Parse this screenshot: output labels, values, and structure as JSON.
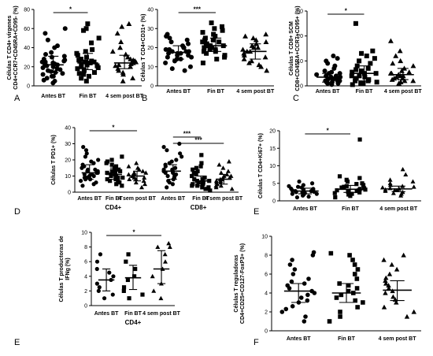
{
  "chart_data": [
    {
      "id": "A",
      "type": "scatter",
      "panel_label": "A",
      "ylabel": "Células T CD4+ vírgenes CD4+CCR7+CD45RA+CD95- (%)",
      "ylim": [
        0,
        80
      ],
      "yticks": [
        0,
        20,
        40,
        60,
        80
      ],
      "categories": [
        "Antes BT",
        "Fin BT",
        "4 sem post BT"
      ],
      "groups": [
        {
          "category": "Antes BT",
          "marker": "circle",
          "mean": 22,
          "sd_low": 14,
          "sd_high": 31,
          "values": [
            3,
            5,
            6,
            8,
            10,
            10,
            12,
            13,
            14,
            15,
            16,
            17,
            18,
            19,
            20,
            21,
            22,
            22,
            23,
            24,
            25,
            25,
            26,
            27,
            28,
            30,
            31,
            33,
            35,
            40,
            42,
            48,
            55,
            60
          ]
        },
        {
          "category": "Fin BT",
          "marker": "square",
          "mean": 24,
          "sd_low": 17,
          "sd_high": 34,
          "values": [
            5,
            8,
            10,
            12,
            13,
            14,
            16,
            17,
            18,
            19,
            20,
            21,
            22,
            23,
            24,
            25,
            25,
            26,
            27,
            28,
            30,
            32,
            34,
            36,
            38,
            45,
            50,
            58,
            60,
            65
          ]
        },
        {
          "category": "4 sem post BT",
          "marker": "triangle",
          "mean": 24,
          "sd_low": 18,
          "sd_high": 32,
          "values": [
            5,
            8,
            12,
            14,
            16,
            18,
            20,
            21,
            22,
            23,
            24,
            25,
            26,
            27,
            28,
            30,
            33,
            36,
            40,
            46,
            55,
            62,
            65
          ]
        }
      ],
      "significance": [
        {
          "from": 0,
          "to": 1,
          "label": "*"
        }
      ]
    },
    {
      "id": "B",
      "type": "scatter",
      "panel_label": "B",
      "ylabel": "Células T CD4+CD31+ (%)",
      "ylim": [
        0,
        40
      ],
      "yticks": [
        0,
        10,
        20,
        30,
        40
      ],
      "categories": [
        "Antes BT",
        "Fin BT",
        "4 sem post BT"
      ],
      "groups": [
        {
          "category": "Antes BT",
          "marker": "circle",
          "mean": 17.5,
          "sd_low": 14,
          "sd_high": 21,
          "values": [
            8,
            9,
            10,
            12,
            13,
            14,
            14,
            15,
            15,
            16,
            16,
            17,
            17,
            17,
            18,
            18,
            18,
            19,
            19,
            20,
            20,
            21,
            22,
            23,
            24,
            25,
            26,
            27
          ]
        },
        {
          "category": "Fin BT",
          "marker": "square",
          "mean": 21,
          "sd_low": 18,
          "sd_high": 25,
          "values": [
            12,
            14,
            15,
            16,
            17,
            18,
            18,
            19,
            19,
            20,
            20,
            21,
            21,
            21,
            22,
            22,
            23,
            23,
            24,
            24,
            25,
            26,
            27,
            28,
            29,
            30,
            31,
            33
          ]
        },
        {
          "category": "4 sem post BT",
          "marker": "triangle",
          "mean": 18,
          "sd_low": 14,
          "sd_high": 22,
          "values": [
            8,
            10,
            11,
            12,
            13,
            14,
            15,
            16,
            17,
            18,
            18,
            19,
            20,
            20,
            21,
            22,
            23,
            24,
            25,
            26,
            27
          ]
        }
      ],
      "significance": [
        {
          "from": 0,
          "to": 1,
          "label": "***"
        }
      ]
    },
    {
      "id": "C",
      "type": "scatter",
      "panel_label": "C",
      "ylabel": "Células T CD8+ SCM CD8+CD45RA+CCR7+CD95+ (%)",
      "ylim": [
        0,
        30
      ],
      "yticks": [
        0,
        10,
        20,
        30
      ],
      "categories": [
        "Antes BT",
        "Fin BT",
        "4 sem post BT"
      ],
      "groups": [
        {
          "category": "Antes BT",
          "marker": "circle",
          "mean": 3.5,
          "sd_low": 1.5,
          "sd_high": 5,
          "values": [
            0.5,
            1,
            1,
            1.5,
            1.5,
            2,
            2,
            2,
            2.5,
            2.5,
            3,
            3,
            3,
            3.5,
            3.5,
            4,
            4,
            4.5,
            5,
            5,
            5.5,
            6,
            7,
            8,
            9,
            10,
            11,
            12
          ]
        },
        {
          "category": "Fin BT",
          "marker": "square",
          "mean": 5,
          "sd_low": 2,
          "sd_high": 8,
          "values": [
            0.5,
            1,
            1,
            1.5,
            2,
            2,
            2.5,
            3,
            3,
            3.5,
            4,
            4,
            5,
            5,
            5.5,
            6,
            6.5,
            7,
            8,
            9,
            10,
            11,
            12,
            13,
            14,
            25
          ]
        },
        {
          "category": "4 sem post BT",
          "marker": "triangle",
          "mean": 4.5,
          "sd_low": 2.5,
          "sd_high": 7,
          "values": [
            1,
            1.5,
            2,
            2,
            2.5,
            3,
            3,
            3.5,
            4,
            4,
            4.5,
            5,
            5,
            5.5,
            6,
            7,
            8,
            9,
            10,
            12,
            14,
            18
          ]
        }
      ],
      "significance": [
        {
          "from": 0,
          "to": 1,
          "label": "*"
        }
      ]
    },
    {
      "id": "D",
      "type": "scatter",
      "panel_label": "D",
      "ylabel": "Células T PD1+ (%)",
      "ylim": [
        0,
        40
      ],
      "yticks": [
        0,
        10,
        20,
        30,
        40
      ],
      "categories": [
        "Antes BT",
        "Fin BT",
        "4 sem post BT",
        "Antes BT",
        "Fin BT",
        "4 sem post BT"
      ],
      "group_labels": [
        {
          "text": "CD4+",
          "span": [
            0,
            2
          ]
        },
        {
          "text": "CD8+",
          "span": [
            3,
            5
          ]
        }
      ],
      "groups": [
        {
          "category": "Antes BT",
          "marker": "circle",
          "mean": 12,
          "sd_low": 8,
          "sd_high": 17,
          "values": [
            4,
            5,
            6,
            7,
            8,
            8,
            9,
            9,
            10,
            10,
            11,
            11,
            12,
            12,
            13,
            13,
            14,
            14,
            15,
            16,
            17,
            18,
            19,
            20,
            22,
            24,
            26,
            28
          ]
        },
        {
          "category": "Fin BT",
          "marker": "square",
          "mean": 11,
          "sd_low": 8,
          "sd_high": 15,
          "values": [
            4,
            5,
            6,
            7,
            7,
            8,
            8,
            9,
            9,
            10,
            10,
            11,
            11,
            12,
            12,
            13,
            13,
            14,
            14,
            15,
            16,
            17,
            18,
            19,
            20,
            22
          ]
        },
        {
          "category": "4 sem post BT",
          "marker": "triangle",
          "mean": 10,
          "sd_low": 7,
          "sd_high": 13,
          "values": [
            3,
            5,
            6,
            7,
            8,
            8,
            9,
            9,
            10,
            10,
            11,
            11,
            12,
            12,
            13,
            14,
            15,
            16,
            18
          ]
        },
        {
          "category": "Antes BT",
          "marker": "circle",
          "mean": 13,
          "sd_low": 8,
          "sd_high": 17,
          "values": [
            3,
            5,
            6,
            7,
            8,
            9,
            10,
            10,
            11,
            12,
            12,
            13,
            13,
            14,
            14,
            15,
            16,
            17,
            18,
            19,
            20,
            22,
            24,
            26,
            28,
            30
          ]
        },
        {
          "category": "Fin BT",
          "marker": "square",
          "mean": 7,
          "sd_low": 4,
          "sd_high": 10,
          "values": [
            1,
            2,
            2,
            3,
            3,
            4,
            4,
            5,
            5,
            6,
            6,
            7,
            7,
            8,
            8,
            9,
            9,
            10,
            11,
            12,
            13,
            14,
            15,
            16,
            18,
            23
          ]
        },
        {
          "category": "4 sem post BT",
          "marker": "triangle",
          "mean": 8,
          "sd_low": 5,
          "sd_high": 11,
          "values": [
            2,
            3,
            4,
            4,
            5,
            5,
            6,
            6,
            7,
            7,
            8,
            8,
            9,
            9,
            10,
            10,
            11,
            12,
            13,
            15,
            17,
            19
          ]
        }
      ],
      "significance": [
        {
          "from": 0,
          "to": 2,
          "label": "*"
        },
        {
          "from": 3,
          "to": 4,
          "label": "***"
        },
        {
          "from": 3,
          "to": 5,
          "label": "***"
        }
      ]
    },
    {
      "id": "E1",
      "type": "scatter",
      "panel_label": "E",
      "ylabel": "Células T CD4+Ki67+ (%)",
      "ylim": [
        0,
        20
      ],
      "yticks": [
        0,
        5,
        10,
        15,
        20
      ],
      "categories": [
        "Antes BT",
        "Fin BT",
        "4 sem post BT"
      ],
      "groups": [
        {
          "category": "Antes BT",
          "marker": "circle",
          "mean": 2.8,
          "sd_low": 2,
          "sd_high": 3.6,
          "values": [
            1,
            1.2,
            1.5,
            1.8,
            2,
            2,
            2.2,
            2.4,
            2.5,
            2.6,
            2.8,
            2.8,
            3,
            3,
            3.2,
            3.4,
            3.5,
            3.8,
            4,
            4.2,
            4.5,
            5,
            5.5
          ]
        },
        {
          "category": "Fin BT",
          "marker": "square",
          "mean": 3.3,
          "sd_low": 2.4,
          "sd_high": 4.4,
          "values": [
            1,
            1.4,
            1.8,
            2,
            2.2,
            2.4,
            2.6,
            2.8,
            3,
            3,
            3.2,
            3.4,
            3.6,
            3.8,
            4,
            4.2,
            4.5,
            4.8,
            5,
            5.5,
            6,
            6.5,
            7,
            17.5
          ]
        },
        {
          "category": "4 sem post BT",
          "marker": "triangle",
          "mean": 3.4,
          "sd_low": 2.6,
          "sd_high": 4.2,
          "values": [
            1.5,
            2,
            2.2,
            2.5,
            2.8,
            3,
            3,
            3.2,
            3.4,
            3.6,
            3.8,
            4,
            4.2,
            4.5,
            5,
            5.5,
            6,
            7.5,
            9
          ]
        }
      ],
      "significance": [
        {
          "from": 0,
          "to": 1,
          "label": "*"
        }
      ]
    },
    {
      "id": "E2",
      "type": "scatter",
      "panel_label": "E",
      "ylabel": "Células T productoras de IFNg (%)",
      "ylim": [
        0,
        10
      ],
      "yticks": [
        0,
        2,
        4,
        6,
        8,
        10
      ],
      "categories": [
        "Antes BT",
        "Fin BT",
        "4 sem post BT"
      ],
      "xlabel": "CD4+",
      "groups": [
        {
          "category": "Antes BT",
          "marker": "circle",
          "mean": 3.5,
          "sd_low": 2,
          "sd_high": 5,
          "values": [
            1,
            1.5,
            2,
            2.5,
            3,
            3.5,
            4,
            4.5,
            5,
            6,
            7
          ]
        },
        {
          "category": "Fin BT",
          "marker": "square",
          "mean": 3.8,
          "sd_low": 2.2,
          "sd_high": 5.5,
          "values": [
            1,
            1.5,
            2,
            2.5,
            3.5,
            4,
            5,
            6,
            7
          ]
        },
        {
          "category": "4 sem post BT",
          "marker": "triangle",
          "mean": 5,
          "sd_low": 3,
          "sd_high": 7.5,
          "values": [
            1,
            2,
            3,
            4,
            5,
            6,
            7,
            8,
            8,
            8.5
          ]
        }
      ],
      "significance": [
        {
          "from": 0,
          "to": 2,
          "label": "*"
        }
      ]
    },
    {
      "id": "F",
      "type": "scatter",
      "panel_label": "F",
      "ylabel": "Células T reguladoras CD4+CD25+CD127-FoxP3+ (%)",
      "ylim": [
        0,
        10
      ],
      "yticks": [
        0,
        2,
        4,
        6,
        8,
        10
      ],
      "categories": [
        "Antes BT",
        "Fin BT",
        "4 sem post BT"
      ],
      "groups": [
        {
          "category": "Antes BT",
          "marker": "circle",
          "mean": 4.2,
          "sd_low": 3,
          "sd_high": 5,
          "values": [
            1,
            1.5,
            2,
            2.3,
            2.6,
            3,
            3.2,
            3.5,
            3.8,
            4,
            4.2,
            4.5,
            4.8,
            5,
            5.2,
            5.5,
            6,
            6.5,
            7,
            7.5,
            8,
            8.3
          ]
        },
        {
          "category": "Fin BT",
          "marker": "square",
          "mean": 4,
          "sd_low": 3,
          "sd_high": 5,
          "values": [
            1,
            1.5,
            2,
            2.5,
            3,
            3.2,
            3.5,
            3.8,
            4,
            4.2,
            4.5,
            4.8,
            5,
            5.5,
            6,
            6.5,
            7,
            7.5,
            8,
            8.2
          ]
        },
        {
          "category": "4 sem post BT",
          "marker": "triangle",
          "mean": 4.3,
          "sd_low": 3.2,
          "sd_high": 5.3,
          "values": [
            1.5,
            2,
            2.5,
            3,
            3.3,
            3.6,
            4,
            4.2,
            4.5,
            4.8,
            5,
            5.3,
            5.6,
            6,
            6.5,
            7,
            7.5,
            8
          ]
        }
      ],
      "significance": []
    }
  ]
}
